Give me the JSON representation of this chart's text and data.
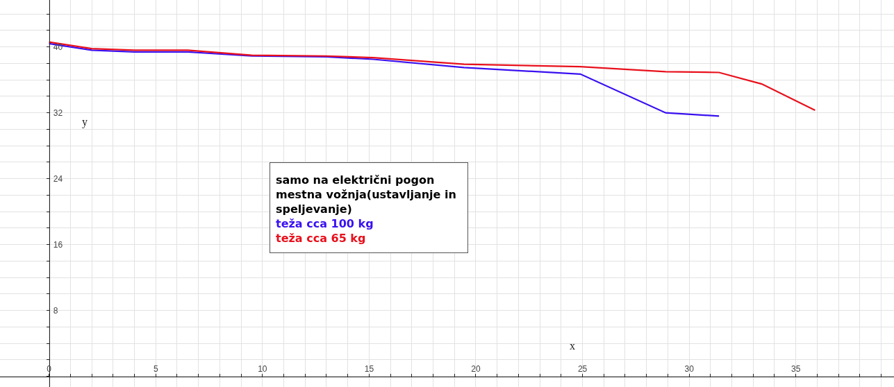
{
  "chart_data": {
    "type": "line",
    "xlabel": "x",
    "ylabel": "y",
    "legend_title": "samo na električni pogon mestna vožnja(ustavljanje in speljevanje)",
    "series": [
      {
        "name": "teža cca 100 kg",
        "color": "#3a10f0",
        "x": [
          0,
          2,
          4,
          6.5,
          9.5,
          13,
          15.2,
          19.45,
          24.9,
          28.9,
          31.4
        ],
        "values": [
          40.4,
          39.6,
          39.4,
          39.4,
          38.9,
          38.8,
          38.5,
          37.5,
          36.7,
          32.0,
          31.6
        ]
      },
      {
        "name": "teža cca 65 kg",
        "color": "#e8101c",
        "x": [
          0,
          2,
          4,
          6.5,
          9.5,
          13,
          15.2,
          19.45,
          24.9,
          28.9,
          31.4,
          33.4,
          35.9
        ],
        "values": [
          40.6,
          39.8,
          39.6,
          39.6,
          39.0,
          38.9,
          38.7,
          37.9,
          37.6,
          37.0,
          36.9,
          35.5,
          32.3
        ]
      }
    ],
    "xlim": [
      -2.3,
      39.6
    ],
    "ylim": [
      -1.3,
      45.7
    ],
    "xticks": [
      0,
      {
        "value": 1,
        "label": null
      },
      {
        "value": 2,
        "label": null
      },
      {
        "value": 3,
        "label": null
      },
      {
        "value": 4,
        "label": null
      },
      5,
      {
        "value": 6,
        "label": null
      },
      {
        "value": 7,
        "label": null
      },
      {
        "value": 8,
        "label": null
      },
      {
        "value": 9,
        "label": null
      },
      10,
      {
        "value": 11,
        "label": null
      },
      {
        "value": 12,
        "label": null
      },
      {
        "value": 13,
        "label": null
      },
      {
        "value": 14,
        "label": null
      },
      15,
      {
        "value": 16,
        "label": null
      },
      {
        "value": 17,
        "label": null
      },
      {
        "value": 18,
        "label": null
      },
      {
        "value": 19,
        "label": null
      },
      20,
      {
        "value": 21,
        "label": null
      },
      {
        "value": 22,
        "label": null
      },
      {
        "value": 23,
        "label": null
      },
      {
        "value": 24,
        "label": null
      },
      25,
      {
        "value": 26,
        "label": null
      },
      {
        "value": 27,
        "label": null
      },
      {
        "value": 28,
        "label": null
      },
      {
        "value": 29,
        "label": null
      },
      30,
      {
        "value": 31,
        "label": null
      },
      {
        "value": 32,
        "label": null
      },
      {
        "value": 33,
        "label": null
      },
      {
        "value": 34,
        "label": null
      },
      35,
      {
        "value": 36,
        "label": null
      },
      {
        "value": 37,
        "label": null
      },
      {
        "value": 38,
        "label": null
      },
      {
        "value": 39,
        "label": null
      }
    ],
    "yticks": [
      {
        "value": 0,
        "label": null
      },
      {
        "value": 2,
        "label": null
      },
      {
        "value": 4,
        "label": null
      },
      {
        "value": 6,
        "label": null
      },
      8,
      {
        "value": 10,
        "label": null
      },
      {
        "value": 12,
        "label": null
      },
      {
        "value": 14,
        "label": null
      },
      16,
      {
        "value": 18,
        "label": null
      },
      {
        "value": 20,
        "label": null
      },
      {
        "value": 22,
        "label": null
      },
      24,
      {
        "value": 26,
        "label": null
      },
      {
        "value": 28,
        "label": null
      },
      {
        "value": 30,
        "label": null
      },
      32,
      {
        "value": 34,
        "label": null
      },
      {
        "value": 36,
        "label": null
      },
      {
        "value": 38,
        "label": null
      },
      40,
      {
        "value": 42,
        "label": null
      },
      {
        "value": 44,
        "label": null
      }
    ],
    "grid": true,
    "legend": "center",
    "marker": "none",
    "line_style": "solid"
  }
}
